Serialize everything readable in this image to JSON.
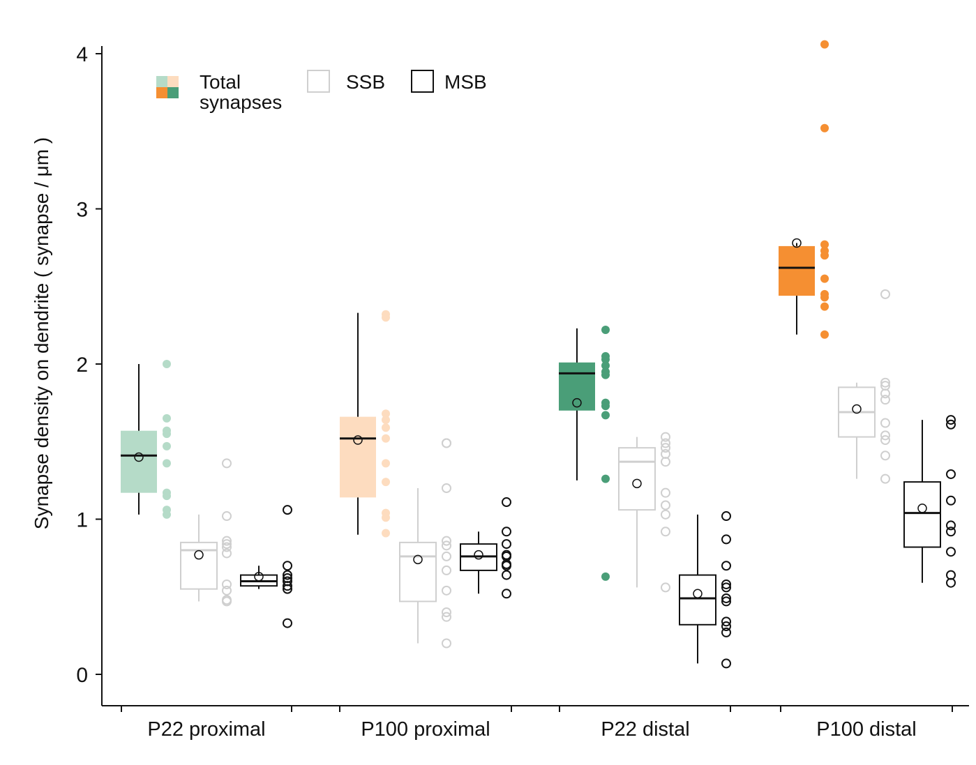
{
  "chart_data": {
    "type": "box",
    "title": "",
    "ylabel": "Synapse density on dendrite ( synapse / μm )",
    "xlabel": "",
    "ylim": [
      0,
      4.05
    ],
    "yticks": [
      0,
      1,
      2,
      3,
      4
    ],
    "categories": [
      "P22 proximal",
      "P100 proximal",
      "P22 distal",
      "P100 distal"
    ],
    "legend": {
      "total_label_line1": "Total",
      "total_label_line2": "synapses",
      "ssb_label": "SSB",
      "msb_label": "MSB",
      "total_swatch_colors": [
        "#b5dbc8",
        "#fddcbf",
        "#f58f32",
        "#4a9e78"
      ]
    },
    "colors": {
      "p22_proximal": "#b5dbc8",
      "p100_proximal": "#fddcbf",
      "p22_distal": "#4a9e78",
      "p100_distal": "#f58f32",
      "ssb": "#cfcfcf",
      "msb": "#111111"
    },
    "groups": [
      {
        "category": "P22 proximal",
        "series": [
          {
            "name": "Total synapses",
            "color": "#b5dbc8",
            "style": "filled",
            "box": {
              "whisker_low": 1.03,
              "q1": 1.17,
              "median": 1.41,
              "q3": 1.57,
              "whisker_high": 2.0,
              "mean": 1.4
            },
            "points": [
              2.0,
              1.65,
              1.57,
              1.55,
              1.47,
              1.36,
              1.17,
              1.15,
              1.06,
              1.03
            ]
          },
          {
            "name": "SSB",
            "color": "#cfcfcf",
            "style": "outline",
            "box": {
              "whisker_low": 0.47,
              "q1": 0.55,
              "median": 0.8,
              "q3": 0.85,
              "whisker_high": 1.03,
              "mean": 0.77
            },
            "points": [
              1.36,
              1.02,
              0.86,
              0.84,
              0.82,
              0.78,
              0.58,
              0.54,
              0.48,
              0.47
            ]
          },
          {
            "name": "MSB",
            "color": "#111111",
            "style": "outline",
            "box": {
              "whisker_low": 0.55,
              "q1": 0.57,
              "median": 0.6,
              "q3": 0.64,
              "whisker_high": 0.7,
              "mean": 0.63
            },
            "points": [
              1.06,
              0.7,
              0.64,
              0.62,
              0.6,
              0.57,
              0.55,
              0.33
            ]
          }
        ]
      },
      {
        "category": "P100 proximal",
        "series": [
          {
            "name": "Total synapses",
            "color": "#fddcbf",
            "style": "filled",
            "box": {
              "whisker_low": 0.9,
              "q1": 1.14,
              "median": 1.52,
              "q3": 1.66,
              "whisker_high": 2.33,
              "mean": 1.51
            },
            "points": [
              2.32,
              2.3,
              1.68,
              1.64,
              1.59,
              1.52,
              1.36,
              1.24,
              1.04,
              1.01,
              0.91
            ]
          },
          {
            "name": "SSB",
            "color": "#cfcfcf",
            "style": "outline",
            "box": {
              "whisker_low": 0.2,
              "q1": 0.47,
              "median": 0.76,
              "q3": 0.85,
              "whisker_high": 1.2,
              "mean": 0.74
            },
            "points": [
              1.49,
              1.49,
              1.2,
              0.86,
              0.83,
              0.76,
              0.67,
              0.54,
              0.4,
              0.37,
              0.2
            ]
          },
          {
            "name": "MSB",
            "color": "#111111",
            "style": "outline",
            "box": {
              "whisker_low": 0.52,
              "q1": 0.67,
              "median": 0.76,
              "q3": 0.84,
              "whisker_high": 0.92,
              "mean": 0.77
            },
            "points": [
              1.11,
              0.92,
              0.84,
              0.77,
              0.76,
              0.71,
              0.7,
              0.64,
              0.52
            ]
          }
        ]
      },
      {
        "category": "P22 distal",
        "series": [
          {
            "name": "Total synapses",
            "color": "#4a9e78",
            "style": "filled",
            "box": {
              "whisker_low": 1.25,
              "q1": 1.7,
              "median": 1.94,
              "q3": 2.01,
              "whisker_high": 2.23,
              "mean": 1.75
            },
            "points": [
              2.22,
              2.05,
              2.03,
              1.99,
              1.95,
              1.93,
              1.75,
              1.73,
              1.67,
              1.26,
              0.63
            ]
          },
          {
            "name": "SSB",
            "color": "#cfcfcf",
            "style": "outline",
            "box": {
              "whisker_low": 0.56,
              "q1": 1.06,
              "median": 1.37,
              "q3": 1.46,
              "whisker_high": 1.53,
              "mean": 1.23
            },
            "points": [
              1.53,
              1.49,
              1.46,
              1.42,
              1.37,
              1.17,
              1.09,
              1.03,
              0.92,
              0.56
            ]
          },
          {
            "name": "MSB",
            "color": "#111111",
            "style": "outline",
            "box": {
              "whisker_low": 0.07,
              "q1": 0.32,
              "median": 0.49,
              "q3": 0.64,
              "whisker_high": 1.03,
              "mean": 0.52
            },
            "points": [
              1.02,
              0.87,
              0.7,
              0.58,
              0.56,
              0.49,
              0.47,
              0.34,
              0.31,
              0.27,
              0.07
            ]
          }
        ]
      },
      {
        "category": "P100 distal",
        "series": [
          {
            "name": "Total synapses",
            "color": "#f58f32",
            "style": "filled",
            "box": {
              "whisker_low": 2.19,
              "q1": 2.44,
              "median": 2.62,
              "q3": 2.76,
              "whisker_high": 2.78,
              "mean": 2.78
            },
            "points": [
              4.06,
              3.52,
              2.77,
              2.73,
              2.7,
              2.55,
              2.45,
              2.43,
              2.37,
              2.19
            ]
          },
          {
            "name": "SSB",
            "color": "#cfcfcf",
            "style": "outline",
            "box": {
              "whisker_low": 1.26,
              "q1": 1.53,
              "median": 1.69,
              "q3": 1.85,
              "whisker_high": 1.88,
              "mean": 1.71
            },
            "points": [
              2.45,
              1.88,
              1.86,
              1.81,
              1.77,
              1.62,
              1.54,
              1.51,
              1.41,
              1.26
            ]
          },
          {
            "name": "MSB",
            "color": "#111111",
            "style": "outline",
            "box": {
              "whisker_low": 0.59,
              "q1": 0.82,
              "median": 1.04,
              "q3": 1.24,
              "whisker_high": 1.64,
              "mean": 1.07
            },
            "points": [
              1.64,
              1.61,
              1.29,
              1.12,
              0.96,
              0.92,
              0.79,
              0.64,
              0.59
            ]
          }
        ]
      }
    ]
  }
}
